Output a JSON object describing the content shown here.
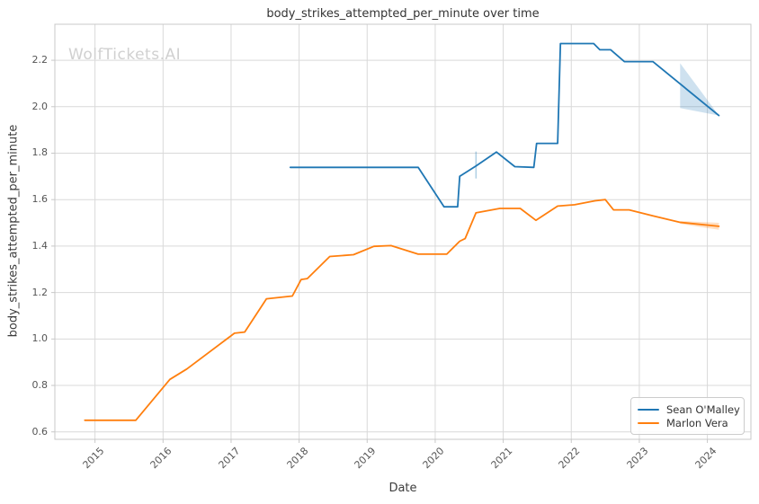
{
  "watermark": "WolfTickets.AI",
  "chart_data": {
    "type": "line",
    "title": "body_strikes_attempted_per_minute over time",
    "xlabel": "Date",
    "ylabel": "body_strikes_attempted_per_minute",
    "xlim": [
      2014.41,
      2024.64
    ],
    "ylim": [
      0.568,
      2.355
    ],
    "xticks": [
      2015,
      2016,
      2017,
      2018,
      2019,
      2020,
      2021,
      2022,
      2023,
      2024
    ],
    "yticks": [
      0.6,
      0.8,
      1.0,
      1.2,
      1.4,
      1.6,
      1.8,
      2.0,
      2.2
    ],
    "grid": true,
    "legend_position": "lower right",
    "colors": {
      "grid": "#d9d9d9",
      "spine": "#c8c8c8",
      "tick_text": "#555555",
      "title_text": "#333333"
    },
    "series": [
      {
        "name": "Sean O'Malley",
        "color": "#1f77b4",
        "points": [
          [
            2017.87,
            1.739
          ],
          [
            2019.75,
            1.739
          ],
          [
            2020.13,
            1.569
          ],
          [
            2020.33,
            1.569
          ],
          [
            2020.36,
            1.7
          ],
          [
            2020.6,
            1.745
          ],
          [
            2020.9,
            1.805
          ],
          [
            2021.17,
            1.742
          ],
          [
            2021.45,
            1.739
          ],
          [
            2021.49,
            1.842
          ],
          [
            2021.8,
            1.842
          ],
          [
            2021.84,
            2.272
          ],
          [
            2022.33,
            2.272
          ],
          [
            2022.42,
            2.245
          ],
          [
            2022.58,
            2.245
          ],
          [
            2022.78,
            2.194
          ],
          [
            2023.2,
            2.194
          ],
          [
            2024.17,
            1.962
          ]
        ]
      },
      {
        "name": "Marlon Vera",
        "color": "#ff7f0e",
        "points": [
          [
            2014.85,
            0.65
          ],
          [
            2015.6,
            0.65
          ],
          [
            2016.1,
            0.826
          ],
          [
            2016.35,
            0.871
          ],
          [
            2017.05,
            1.025
          ],
          [
            2017.2,
            1.03
          ],
          [
            2017.52,
            1.173
          ],
          [
            2017.9,
            1.185
          ],
          [
            2018.03,
            1.256
          ],
          [
            2018.12,
            1.26
          ],
          [
            2018.45,
            1.355
          ],
          [
            2018.8,
            1.363
          ],
          [
            2019.1,
            1.399
          ],
          [
            2019.35,
            1.402
          ],
          [
            2019.75,
            1.365
          ],
          [
            2020.17,
            1.365
          ],
          [
            2020.36,
            1.421
          ],
          [
            2020.44,
            1.432
          ],
          [
            2020.6,
            1.543
          ],
          [
            2020.95,
            1.562
          ],
          [
            2021.25,
            1.562
          ],
          [
            2021.48,
            1.511
          ],
          [
            2021.8,
            1.572
          ],
          [
            2022.05,
            1.578
          ],
          [
            2022.35,
            1.595
          ],
          [
            2022.5,
            1.6
          ],
          [
            2022.62,
            1.556
          ],
          [
            2022.85,
            1.556
          ],
          [
            2023.2,
            1.53
          ],
          [
            2023.6,
            1.502
          ],
          [
            2024.17,
            1.485
          ]
        ]
      }
    ],
    "confidence_regions": [
      {
        "series": "Sean O'Malley",
        "shape": "polygon",
        "color": "#1f77b4",
        "opacity": 0.22,
        "points": [
          [
            2023.6,
            2.187
          ],
          [
            2024.17,
            1.962
          ],
          [
            2023.6,
            1.994
          ]
        ]
      },
      {
        "series": "Sean O'Malley",
        "shape": "segment",
        "color": "#1f77b4",
        "opacity": 0.35,
        "points": [
          [
            2020.6,
            1.691
          ],
          [
            2020.6,
            1.807
          ]
        ]
      },
      {
        "series": "Marlon Vera",
        "shape": "polygon",
        "color": "#ff7f0e",
        "opacity": 0.25,
        "points": [
          [
            2023.6,
            1.508
          ],
          [
            2024.17,
            1.5
          ],
          [
            2024.17,
            1.47
          ],
          [
            2023.6,
            1.496
          ]
        ]
      }
    ]
  }
}
